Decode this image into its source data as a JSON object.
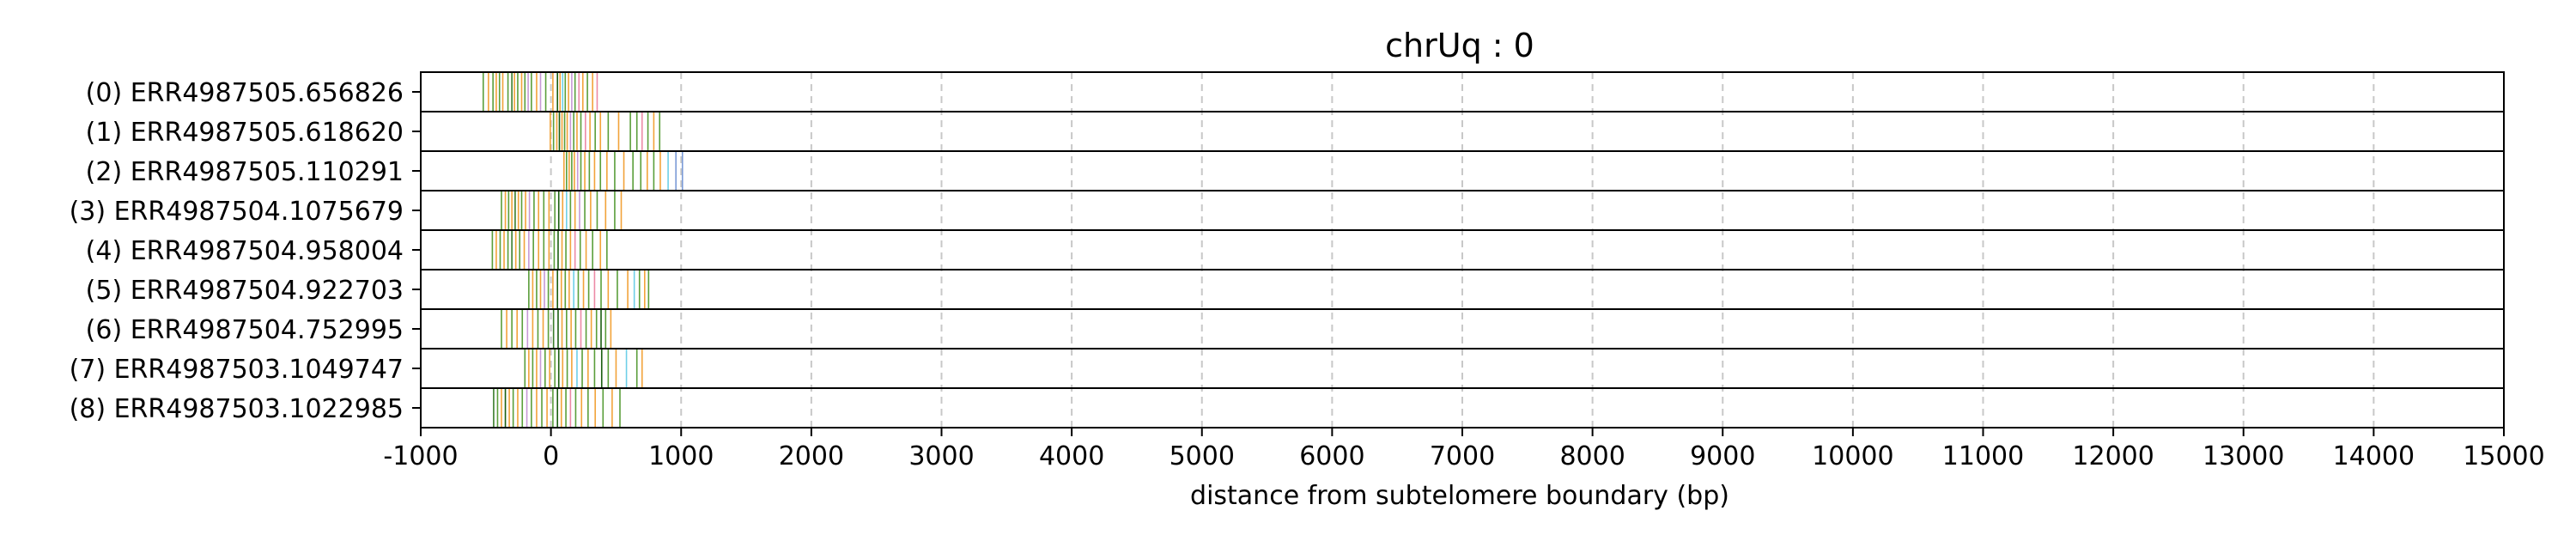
{
  "chart_data": {
    "type": "event_plot",
    "title": "chrUq : 0",
    "xlabel": "distance from subtelomere boundary (bp)",
    "ylabel": "",
    "xlim": [
      -1000,
      15000
    ],
    "x_ticks": [
      -1000,
      0,
      1000,
      2000,
      3000,
      4000,
      5000,
      6000,
      7000,
      8000,
      9000,
      10000,
      11000,
      12000,
      13000,
      14000,
      15000
    ],
    "x_tick_labels": [
      "-1000",
      "0",
      "1000",
      "2000",
      "3000",
      "4000",
      "5000",
      "6000",
      "7000",
      "8000",
      "9000",
      "10000",
      "11000",
      "12000",
      "13000",
      "14000",
      "15000"
    ],
    "vertical_grid": true,
    "grid_style": "dashed light gray",
    "rows": [
      {
        "label": "(0) ERR4987505.656826",
        "events": [
          {
            "x": -520,
            "color": "#5a9e3a"
          },
          {
            "x": -480,
            "color": "#f2a33a"
          },
          {
            "x": -445,
            "color": "#5a9e3a"
          },
          {
            "x": -420,
            "color": "#f2a33a"
          },
          {
            "x": -395,
            "color": "#5a9e3a"
          },
          {
            "x": -370,
            "color": "#f2a33a"
          },
          {
            "x": -330,
            "color": "#5a9e3a"
          },
          {
            "x": -300,
            "color": "#3a7d2a"
          },
          {
            "x": -280,
            "color": "#f2a33a"
          },
          {
            "x": -255,
            "color": "#5a9e3a"
          },
          {
            "x": -225,
            "color": "#f2a33a"
          },
          {
            "x": -200,
            "color": "#5a9e3a"
          },
          {
            "x": -175,
            "color": "#c79ad6"
          },
          {
            "x": -150,
            "color": "#5a9e3a"
          },
          {
            "x": -110,
            "color": "#f2a33a"
          },
          {
            "x": -80,
            "color": "#c79ad6"
          },
          {
            "x": -40,
            "color": "#5a9e3a"
          },
          {
            "x": 15,
            "color": "#f2a33a"
          },
          {
            "x": 50,
            "color": "#1a5e10"
          },
          {
            "x": 70,
            "color": "#f2a33a"
          },
          {
            "x": 90,
            "color": "#6ecfe8"
          },
          {
            "x": 110,
            "color": "#5a9e3a"
          },
          {
            "x": 135,
            "color": "#f2a33a"
          },
          {
            "x": 160,
            "color": "#c79ad6"
          },
          {
            "x": 185,
            "color": "#5a9e3a"
          },
          {
            "x": 215,
            "color": "#ec8aa6"
          },
          {
            "x": 245,
            "color": "#f2a33a"
          },
          {
            "x": 280,
            "color": "#5a9e3a"
          },
          {
            "x": 320,
            "color": "#f2a33a"
          },
          {
            "x": 355,
            "color": "#ec8aa6"
          }
        ]
      },
      {
        "label": "(1) ERR4987505.618620",
        "events": [
          {
            "x": -5,
            "color": "#f2a33a"
          },
          {
            "x": 20,
            "color": "#5a9e3a"
          },
          {
            "x": 45,
            "color": "#f2a33a"
          },
          {
            "x": 65,
            "color": "#1a5e10"
          },
          {
            "x": 85,
            "color": "#f2a33a"
          },
          {
            "x": 105,
            "color": "#5a9e3a"
          },
          {
            "x": 125,
            "color": "#f2a33a"
          },
          {
            "x": 150,
            "color": "#c79ad6"
          },
          {
            "x": 175,
            "color": "#5a9e3a"
          },
          {
            "x": 200,
            "color": "#f2a33a"
          },
          {
            "x": 230,
            "color": "#5a9e3a"
          },
          {
            "x": 265,
            "color": "#ec8aa6"
          },
          {
            "x": 300,
            "color": "#f2a33a"
          },
          {
            "x": 340,
            "color": "#5a9e3a"
          },
          {
            "x": 380,
            "color": "#f2a33a"
          },
          {
            "x": 440,
            "color": "#5a9e3a"
          },
          {
            "x": 520,
            "color": "#f2a33a"
          },
          {
            "x": 610,
            "color": "#5a9e3a"
          },
          {
            "x": 660,
            "color": "#5a9e3a"
          },
          {
            "x": 700,
            "color": "#ec8aa6"
          },
          {
            "x": 745,
            "color": "#5a9e3a"
          },
          {
            "x": 790,
            "color": "#f2a33a"
          },
          {
            "x": 835,
            "color": "#5a9e3a"
          }
        ]
      },
      {
        "label": "(2) ERR4987505.110291",
        "events": [
          {
            "x": 100,
            "color": "#f2a33a"
          },
          {
            "x": 120,
            "color": "#5a9e3a"
          },
          {
            "x": 140,
            "color": "#f2a33a"
          },
          {
            "x": 160,
            "color": "#5a9e3a"
          },
          {
            "x": 180,
            "color": "#f2a33a"
          },
          {
            "x": 205,
            "color": "#c79ad6"
          },
          {
            "x": 230,
            "color": "#5a9e3a"
          },
          {
            "x": 260,
            "color": "#f2a33a"
          },
          {
            "x": 295,
            "color": "#5a9e3a"
          },
          {
            "x": 335,
            "color": "#f2a33a"
          },
          {
            "x": 380,
            "color": "#5a9e3a"
          },
          {
            "x": 430,
            "color": "#f2a33a"
          },
          {
            "x": 490,
            "color": "#5a9e3a"
          },
          {
            "x": 560,
            "color": "#f2a33a"
          },
          {
            "x": 630,
            "color": "#5a9e3a"
          },
          {
            "x": 690,
            "color": "#5a9e3a"
          },
          {
            "x": 740,
            "color": "#f2a33a"
          },
          {
            "x": 790,
            "color": "#5a9e3a"
          },
          {
            "x": 840,
            "color": "#f2a33a"
          },
          {
            "x": 900,
            "color": "#6ecfe8"
          },
          {
            "x": 960,
            "color": "#7a9ad6"
          },
          {
            "x": 1010,
            "color": "#7a9ad6"
          }
        ]
      },
      {
        "label": "(3) ERR4987504.1075679",
        "events": [
          {
            "x": -380,
            "color": "#5a9e3a"
          },
          {
            "x": -350,
            "color": "#f2a33a"
          },
          {
            "x": -325,
            "color": "#5a9e3a"
          },
          {
            "x": -300,
            "color": "#f2a33a"
          },
          {
            "x": -275,
            "color": "#3a7d2a"
          },
          {
            "x": -250,
            "color": "#f2a33a"
          },
          {
            "x": -225,
            "color": "#5a9e3a"
          },
          {
            "x": -195,
            "color": "#f2a33a"
          },
          {
            "x": -165,
            "color": "#c79ad6"
          },
          {
            "x": -130,
            "color": "#5a9e3a"
          },
          {
            "x": -95,
            "color": "#f2a33a"
          },
          {
            "x": -55,
            "color": "#5a9e3a"
          },
          {
            "x": -15,
            "color": "#f2a33a"
          },
          {
            "x": 30,
            "color": "#5a9e3a"
          },
          {
            "x": 60,
            "color": "#1a5e10"
          },
          {
            "x": 90,
            "color": "#f2a33a"
          },
          {
            "x": 120,
            "color": "#6ecfe8"
          },
          {
            "x": 150,
            "color": "#5a9e3a"
          },
          {
            "x": 185,
            "color": "#f2a33a"
          },
          {
            "x": 220,
            "color": "#c79ad6"
          },
          {
            "x": 260,
            "color": "#5a9e3a"
          },
          {
            "x": 305,
            "color": "#f2a33a"
          },
          {
            "x": 355,
            "color": "#5a9e3a"
          },
          {
            "x": 420,
            "color": "#f2a33a"
          },
          {
            "x": 490,
            "color": "#5a9e3a"
          },
          {
            "x": 540,
            "color": "#f2a33a"
          }
        ]
      },
      {
        "label": "(4) ERR4987504.958004",
        "events": [
          {
            "x": -450,
            "color": "#5a9e3a"
          },
          {
            "x": -420,
            "color": "#f2a33a"
          },
          {
            "x": -390,
            "color": "#5a9e3a"
          },
          {
            "x": -360,
            "color": "#f2a33a"
          },
          {
            "x": -330,
            "color": "#5a9e3a"
          },
          {
            "x": -300,
            "color": "#3a7d2a"
          },
          {
            "x": -270,
            "color": "#f2a33a"
          },
          {
            "x": -240,
            "color": "#5a9e3a"
          },
          {
            "x": -205,
            "color": "#f2a33a"
          },
          {
            "x": -170,
            "color": "#c79ad6"
          },
          {
            "x": -135,
            "color": "#5a9e3a"
          },
          {
            "x": -95,
            "color": "#f2a33a"
          },
          {
            "x": -55,
            "color": "#5a9e3a"
          },
          {
            "x": -15,
            "color": "#f2a33a"
          },
          {
            "x": 25,
            "color": "#5a9e3a"
          },
          {
            "x": 55,
            "color": "#1a5e10"
          },
          {
            "x": 85,
            "color": "#f2a33a"
          },
          {
            "x": 115,
            "color": "#5a9e3a"
          },
          {
            "x": 150,
            "color": "#f2a33a"
          },
          {
            "x": 185,
            "color": "#ec8aa6"
          },
          {
            "x": 225,
            "color": "#5a9e3a"
          },
          {
            "x": 270,
            "color": "#f2a33a"
          },
          {
            "x": 320,
            "color": "#5a9e3a"
          },
          {
            "x": 380,
            "color": "#f2a33a"
          },
          {
            "x": 430,
            "color": "#5a9e3a"
          }
        ]
      },
      {
        "label": "(5) ERR4987504.922703",
        "events": [
          {
            "x": -170,
            "color": "#5a9e3a"
          },
          {
            "x": -140,
            "color": "#f2a33a"
          },
          {
            "x": -110,
            "color": "#5a9e3a"
          },
          {
            "x": -80,
            "color": "#f2a33a"
          },
          {
            "x": -50,
            "color": "#c79ad6"
          },
          {
            "x": -20,
            "color": "#5a9e3a"
          },
          {
            "x": 15,
            "color": "#f2a33a"
          },
          {
            "x": 50,
            "color": "#1a5e10"
          },
          {
            "x": 80,
            "color": "#f2a33a"
          },
          {
            "x": 110,
            "color": "#5a9e3a"
          },
          {
            "x": 140,
            "color": "#f2a33a"
          },
          {
            "x": 175,
            "color": "#6ecfe8"
          },
          {
            "x": 210,
            "color": "#5a9e3a"
          },
          {
            "x": 250,
            "color": "#f2a33a"
          },
          {
            "x": 290,
            "color": "#5a9e3a"
          },
          {
            "x": 335,
            "color": "#ec8aa6"
          },
          {
            "x": 385,
            "color": "#5a9e3a"
          },
          {
            "x": 440,
            "color": "#f2a33a"
          },
          {
            "x": 510,
            "color": "#5a9e3a"
          },
          {
            "x": 590,
            "color": "#f2a33a"
          },
          {
            "x": 640,
            "color": "#6ecfe8"
          },
          {
            "x": 680,
            "color": "#5a9e3a"
          },
          {
            "x": 720,
            "color": "#f2a33a"
          },
          {
            "x": 750,
            "color": "#5a9e3a"
          }
        ]
      },
      {
        "label": "(6) ERR4987504.752995",
        "events": [
          {
            "x": -380,
            "color": "#5a9e3a"
          },
          {
            "x": -340,
            "color": "#f2a33a"
          },
          {
            "x": -300,
            "color": "#5a9e3a"
          },
          {
            "x": -260,
            "color": "#f2a33a"
          },
          {
            "x": -220,
            "color": "#5a9e3a"
          },
          {
            "x": -180,
            "color": "#c79ad6"
          },
          {
            "x": -140,
            "color": "#f2a33a"
          },
          {
            "x": -100,
            "color": "#5a9e3a"
          },
          {
            "x": -60,
            "color": "#f2a33a"
          },
          {
            "x": -20,
            "color": "#5a9e3a"
          },
          {
            "x": 20,
            "color": "#3a7d2a"
          },
          {
            "x": 55,
            "color": "#1a5e10"
          },
          {
            "x": 85,
            "color": "#f2a33a"
          },
          {
            "x": 120,
            "color": "#5a9e3a"
          },
          {
            "x": 155,
            "color": "#f2a33a"
          },
          {
            "x": 190,
            "color": "#5a9e3a"
          },
          {
            "x": 230,
            "color": "#ec8aa6"
          },
          {
            "x": 270,
            "color": "#5a9e3a"
          },
          {
            "x": 310,
            "color": "#f2a33a"
          },
          {
            "x": 350,
            "color": "#5a9e3a"
          },
          {
            "x": 385,
            "color": "#1a5e10"
          },
          {
            "x": 420,
            "color": "#5a9e3a"
          },
          {
            "x": 460,
            "color": "#f2a33a"
          }
        ]
      },
      {
        "label": "(7) ERR4987503.1049747",
        "events": [
          {
            "x": -200,
            "color": "#5a9e3a"
          },
          {
            "x": -170,
            "color": "#f2a33a"
          },
          {
            "x": -140,
            "color": "#5a9e3a"
          },
          {
            "x": -110,
            "color": "#f2a33a"
          },
          {
            "x": -80,
            "color": "#c79ad6"
          },
          {
            "x": -45,
            "color": "#5a9e3a"
          },
          {
            "x": -10,
            "color": "#f2a33a"
          },
          {
            "x": 30,
            "color": "#5a9e3a"
          },
          {
            "x": 60,
            "color": "#1a5e10"
          },
          {
            "x": 90,
            "color": "#f2a33a"
          },
          {
            "x": 125,
            "color": "#5a9e3a"
          },
          {
            "x": 160,
            "color": "#f2a33a"
          },
          {
            "x": 200,
            "color": "#6ecfe8"
          },
          {
            "x": 240,
            "color": "#5a9e3a"
          },
          {
            "x": 285,
            "color": "#f2a33a"
          },
          {
            "x": 335,
            "color": "#5a9e3a"
          },
          {
            "x": 390,
            "color": "#1a5e10"
          },
          {
            "x": 440,
            "color": "#5a9e3a"
          },
          {
            "x": 500,
            "color": "#f2a33a"
          },
          {
            "x": 580,
            "color": "#6ecfe8"
          },
          {
            "x": 660,
            "color": "#5a9e3a"
          },
          {
            "x": 700,
            "color": "#f2a33a"
          }
        ]
      },
      {
        "label": "(8) ERR4987503.1022985",
        "events": [
          {
            "x": -440,
            "color": "#3a7d2a"
          },
          {
            "x": -410,
            "color": "#5a9e3a"
          },
          {
            "x": -380,
            "color": "#f2a33a"
          },
          {
            "x": -350,
            "color": "#1a5e10"
          },
          {
            "x": -320,
            "color": "#f2a33a"
          },
          {
            "x": -290,
            "color": "#5a9e3a"
          },
          {
            "x": -255,
            "color": "#f2a33a"
          },
          {
            "x": -220,
            "color": "#5a9e3a"
          },
          {
            "x": -185,
            "color": "#c79ad6"
          },
          {
            "x": -150,
            "color": "#5a9e3a"
          },
          {
            "x": -110,
            "color": "#f2a33a"
          },
          {
            "x": -70,
            "color": "#5a9e3a"
          },
          {
            "x": -30,
            "color": "#f2a33a"
          },
          {
            "x": 15,
            "color": "#5a9e3a"
          },
          {
            "x": 50,
            "color": "#1a5e10"
          },
          {
            "x": 80,
            "color": "#f2a33a"
          },
          {
            "x": 115,
            "color": "#5a9e3a"
          },
          {
            "x": 150,
            "color": "#ec8aa6"
          },
          {
            "x": 190,
            "color": "#5a9e3a"
          },
          {
            "x": 235,
            "color": "#f2a33a"
          },
          {
            "x": 285,
            "color": "#5a9e3a"
          },
          {
            "x": 340,
            "color": "#f2a33a"
          },
          {
            "x": 400,
            "color": "#5a9e3a"
          },
          {
            "x": 470,
            "color": "#f2a33a"
          },
          {
            "x": 530,
            "color": "#5a9e3a"
          }
        ]
      }
    ]
  }
}
